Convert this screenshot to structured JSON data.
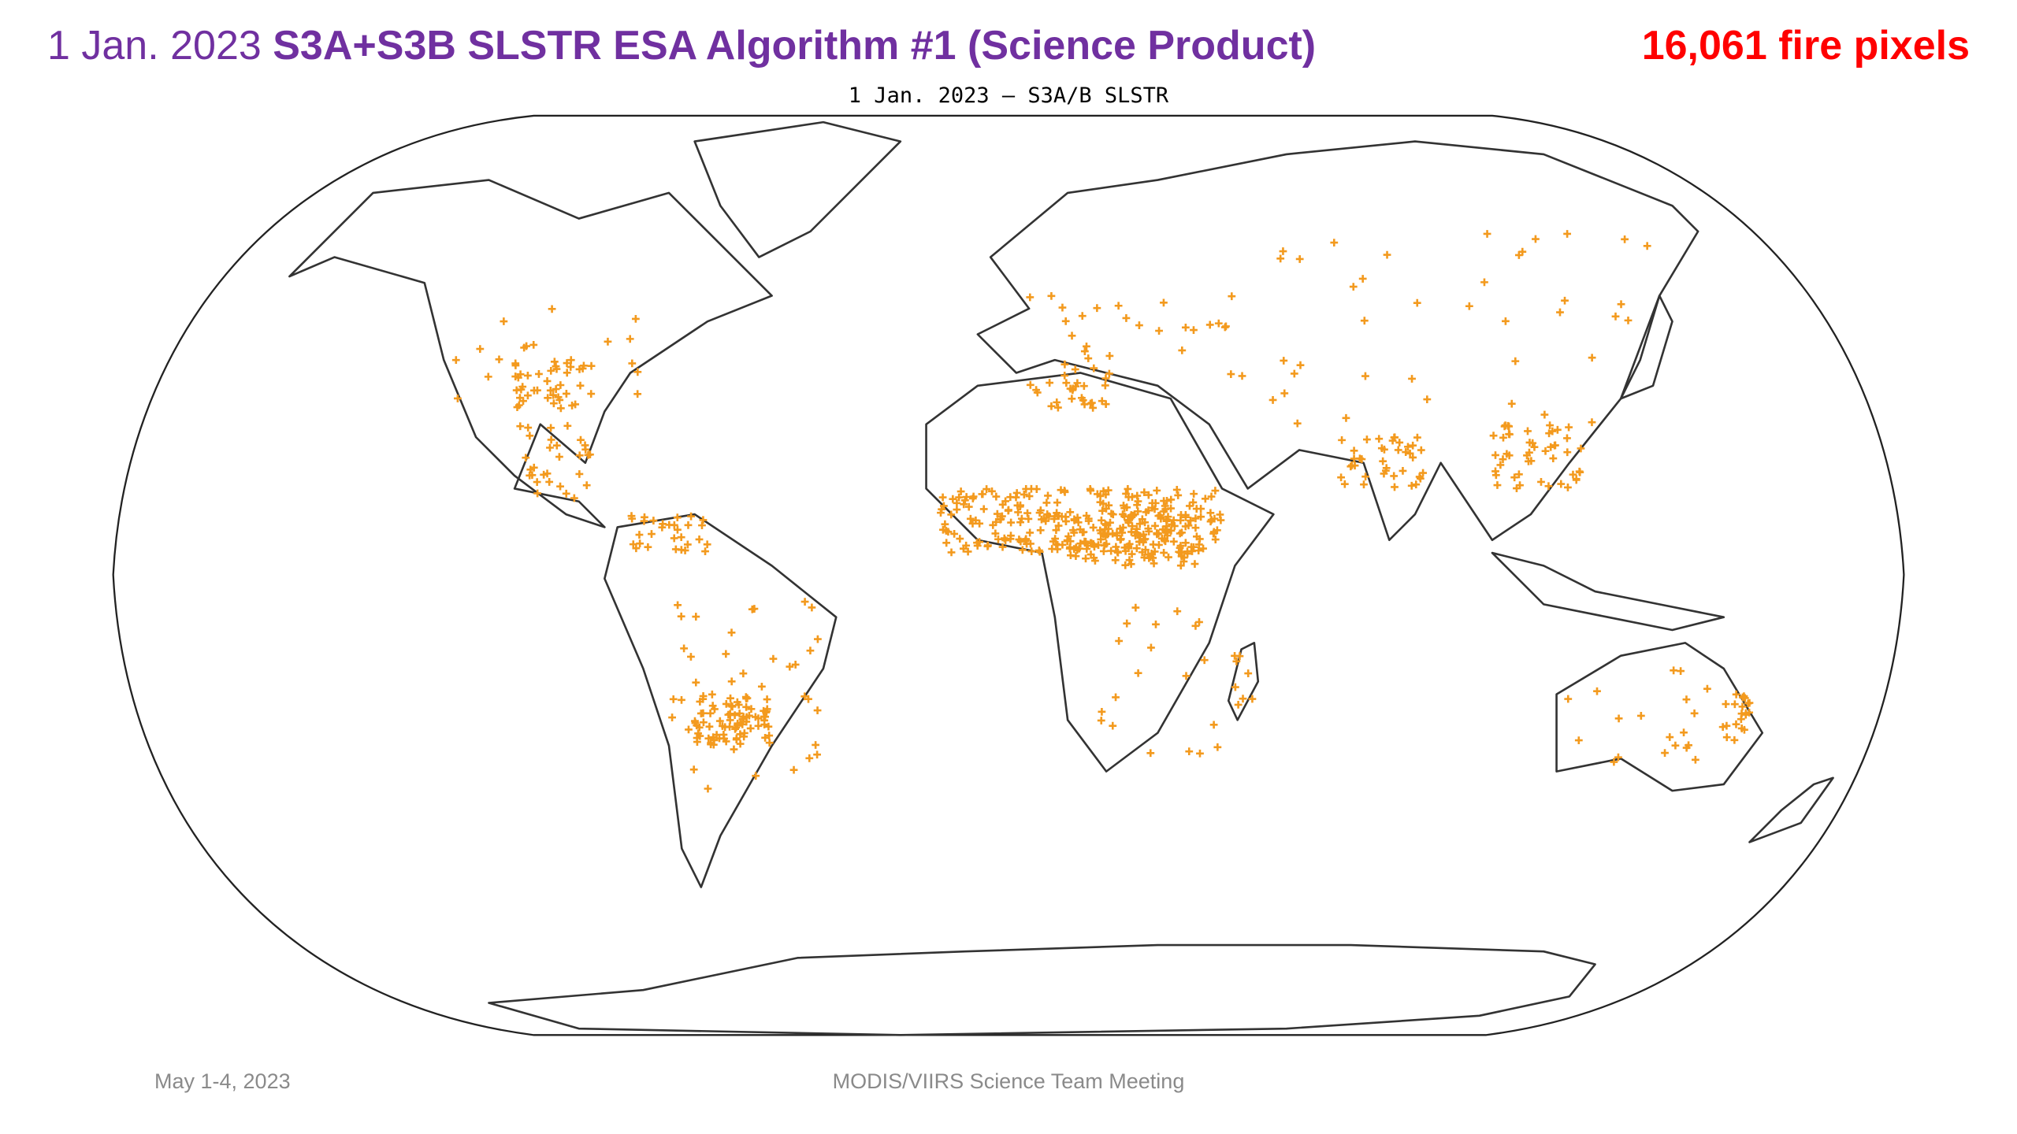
{
  "header": {
    "date": "1 Jan. 2023",
    "title": "S3A+S3B SLSTR ESA Algorithm #1 (Science Product)",
    "count": "16,061 fire pixels"
  },
  "map": {
    "title": "1 Jan. 2023 – S3A/B SLSTR"
  },
  "footer": {
    "date": "May 1-4, 2023",
    "event": "MODIS/VIIRS Science Team Meeting"
  }
}
